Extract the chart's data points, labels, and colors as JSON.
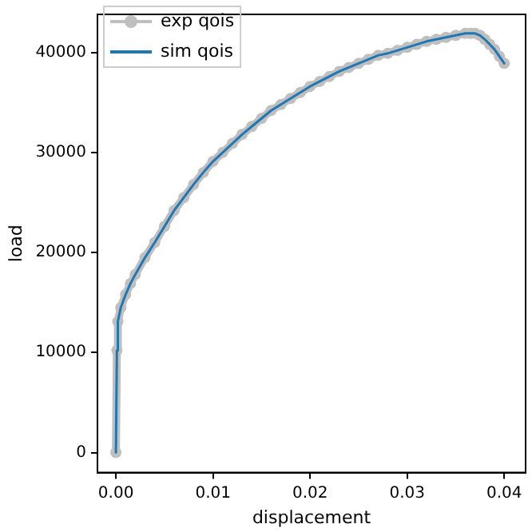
{
  "chart_data": {
    "type": "line",
    "xlabel": "displacement",
    "ylabel": "load",
    "xlim": [
      -0.0019,
      0.0422
    ],
    "ylim": [
      -2000,
      43800
    ],
    "xticks": [
      {
        "value": 0,
        "label": "0.00"
      },
      {
        "value": 0.01,
        "label": "0.01"
      },
      {
        "value": 0.02,
        "label": "0.02"
      },
      {
        "value": 0.03,
        "label": "0.03"
      },
      {
        "value": 0.04,
        "label": "0.04"
      }
    ],
    "yticks": [
      0,
      10000,
      20000,
      30000,
      40000
    ],
    "grid": false,
    "legend": "top left",
    "x": [
      0,
      0.0001,
      0.0002,
      0.0005,
      0.001,
      0.0015,
      0.002,
      0.003,
      0.004,
      0.005,
      0.006,
      0.007,
      0.008,
      0.009,
      0.01,
      0.011,
      0.012,
      0.013,
      0.014,
      0.015,
      0.016,
      0.017,
      0.018,
      0.019,
      0.02,
      0.021,
      0.022,
      0.023,
      0.024,
      0.025,
      0.026,
      0.027,
      0.028,
      0.029,
      0.03,
      0.031,
      0.032,
      0.033,
      0.034,
      0.035,
      0.036,
      0.0365,
      0.037,
      0.0375,
      0.038,
      0.0385,
      0.039,
      0.0395,
      0.04
    ],
    "series": [
      {
        "name": "exp qois",
        "color": "#bfbfbf",
        "marker": "circle",
        "values": [
          0,
          10200,
          13100,
          14500,
          15800,
          16900,
          17800,
          19500,
          21000,
          22600,
          24200,
          25500,
          26800,
          28000,
          29100,
          30000,
          30900,
          31800,
          32600,
          33400,
          34200,
          34800,
          35400,
          36000,
          36600,
          37100,
          37600,
          38100,
          38500,
          38900,
          39300,
          39700,
          39900,
          40200,
          40500,
          40800,
          41100,
          41300,
          41500,
          41700,
          41900,
          41900,
          41900,
          41700,
          41300,
          40800,
          40300,
          39600,
          38900
        ]
      },
      {
        "name": "sim qois",
        "color": "#1f77b4",
        "marker": "none",
        "values": [
          0,
          10200,
          13100,
          14500,
          15800,
          16900,
          17800,
          19500,
          21000,
          22600,
          24200,
          25500,
          26800,
          28000,
          29100,
          30000,
          30900,
          31800,
          32600,
          33400,
          34200,
          34800,
          35400,
          36000,
          36600,
          37100,
          37600,
          38100,
          38500,
          38900,
          39300,
          39700,
          39900,
          40200,
          40500,
          40800,
          41100,
          41300,
          41500,
          41700,
          41900,
          41900,
          41900,
          41700,
          41300,
          40800,
          40300,
          39600,
          38900
        ]
      }
    ]
  }
}
